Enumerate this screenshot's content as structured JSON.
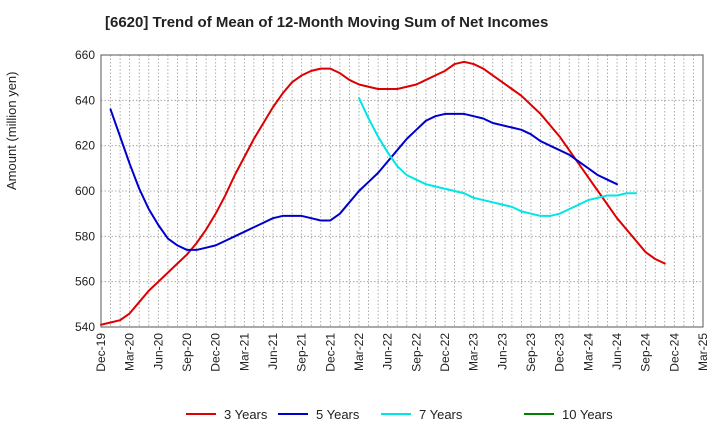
{
  "chart_data": {
    "type": "line",
    "title": "[6620]  Trend of Mean of 12-Month Moving Sum of Net Incomes",
    "ylabel": "Amount (million yen)",
    "xlabel": "",
    "ylim": [
      540,
      660
    ],
    "yticks": [
      540,
      560,
      580,
      600,
      620,
      640,
      660
    ],
    "xticks": [
      "Dec-19",
      "Mar-20",
      "Jun-20",
      "Sep-20",
      "Dec-20",
      "Mar-21",
      "Jun-21",
      "Sep-21",
      "Dec-21",
      "Mar-22",
      "Jun-22",
      "Sep-22",
      "Dec-22",
      "Mar-23",
      "Jun-23",
      "Sep-23",
      "Dec-23",
      "Mar-24",
      "Jun-24",
      "Sep-24",
      "Dec-24",
      "Mar-25"
    ],
    "grid": true,
    "legend_position": "bottom",
    "series": [
      {
        "name": "3 Years",
        "color": "#dd0000",
        "x_start_index": 0,
        "values": [
          541,
          542,
          543,
          546,
          551,
          556,
          560,
          564,
          568,
          572,
          577,
          583,
          590,
          598,
          607,
          615,
          623,
          630,
          637,
          643,
          648,
          651,
          653,
          654,
          654,
          652,
          649,
          647,
          646,
          645,
          645,
          645,
          646,
          647,
          649,
          651,
          653,
          656,
          657,
          656,
          654,
          651,
          648,
          645,
          642,
          638,
          634,
          629,
          624,
          618,
          612,
          606,
          600,
          594,
          588,
          583,
          578,
          573,
          570,
          568
        ]
      },
      {
        "name": "5 Years",
        "color": "#0000cc",
        "x_start_index": 1,
        "values": [
          636,
          624,
          612,
          601,
          592,
          585,
          579,
          576,
          574,
          574,
          575,
          576,
          578,
          580,
          582,
          584,
          586,
          588,
          589,
          589,
          589,
          588,
          587,
          587,
          590,
          595,
          600,
          604,
          608,
          613,
          618,
          623,
          627,
          631,
          633,
          634,
          634,
          634,
          633,
          632,
          630,
          629,
          628,
          627,
          625,
          622,
          620,
          618,
          616,
          613,
          610,
          607,
          605,
          603
        ]
      },
      {
        "name": "7 Years",
        "color": "#00e5e5",
        "x_start_index": 27,
        "values": [
          641,
          632,
          624,
          617,
          611,
          607,
          605,
          603,
          602,
          601,
          600,
          599,
          597,
          596,
          595,
          594,
          593,
          591,
          590,
          589,
          589,
          590,
          592,
          594,
          596,
          597,
          598,
          598,
          599,
          599
        ]
      },
      {
        "name": "10 Years",
        "color": "#008000",
        "x_start_index": 0,
        "values": []
      }
    ]
  }
}
